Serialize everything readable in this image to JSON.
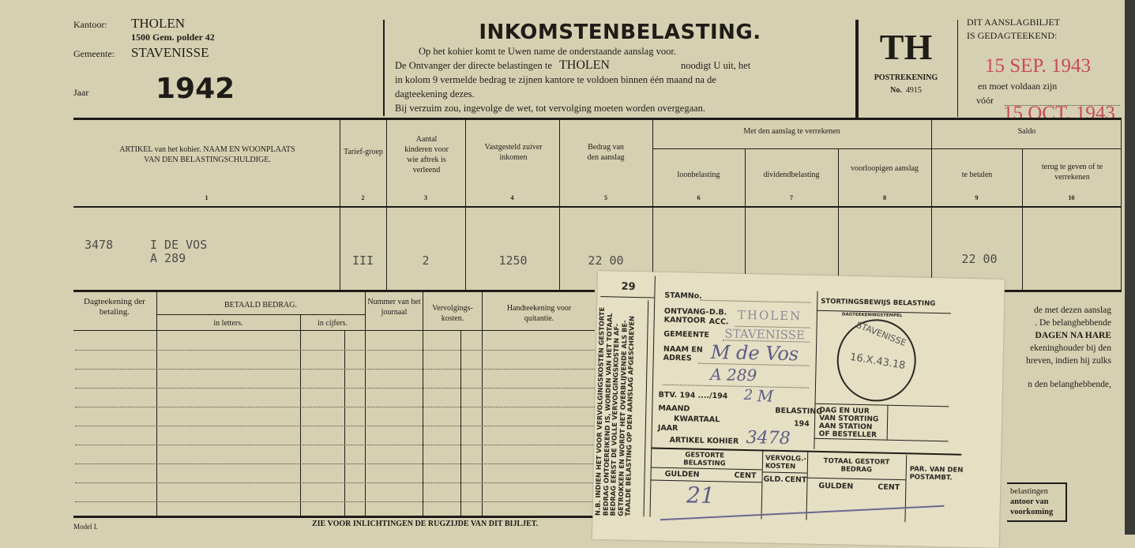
{
  "header": {
    "kantoor_label": "Kantoor:",
    "kantoor": "THOLEN",
    "address": "1500 Gem. polder 42",
    "gemeente_label": "Gemeente:",
    "gemeente": "STAVENISSE",
    "jaar_label": "Jaar",
    "jaar": "1942",
    "title": "INKOMSTENBELASTING.",
    "intro_lines": [
      "Op het kohier komt te Uwen name de onderstaande aanslag voor.",
      "De Ontvanger der directe belastingen te",
      "noodigt U uit, het",
      "in kolom 9 vermelde bedrag te zijnen kantore te voldoen binnen één maand na de",
      "dagteekening dezes.",
      "Bij verzuim zou, ingevolge de wet, tot vervolging moeten worden overgegaan."
    ],
    "ontvanger_place": "THOLEN",
    "code": "TH",
    "postrekening_label": "POSTREKENING",
    "postrekening_no_label": "No.",
    "postrekening_no": "4915",
    "dated_label_1": "DIT AANSLAGBILJET",
    "dated_label_2": "IS GEDAGTEEKEND:",
    "dated": "15 SEP. 1943",
    "pay_label": "en moet voldaan zijn",
    "before_label": "vóór",
    "due": "15 OCT. 1943"
  },
  "table": {
    "columns": [
      {
        "label": "ARTIKEL van het kohier. NAAM EN WOONPLAATS VAN DEN BELASTINGSCHULDIGE.",
        "num": "1"
      },
      {
        "label": "Tarief-groep",
        "num": "2"
      },
      {
        "label": "Aantal kinderen voor wie aftrek is verleend",
        "num": "3"
      },
      {
        "label": "Vastgesteld zuiver inkomen",
        "num": "4"
      },
      {
        "label": "Bedrag van den aanslag",
        "num": "5"
      },
      {
        "label": "loonbelasting",
        "num": "6"
      },
      {
        "label": "dividendbelasting",
        "num": "7"
      },
      {
        "label": "voorloopigen aanslag",
        "num": "8"
      },
      {
        "label": "te betalen",
        "num": "9"
      },
      {
        "label": "terug te geven of te verrekenen",
        "num": "10"
      }
    ],
    "group_verrekenen": "Met den aanslag te verrekenen",
    "group_saldo": "Saldo",
    "row": {
      "artikel": "3478",
      "name": "I DE VOS",
      "address": "A 289",
      "tariefgroep": "III",
      "kinderen": "2",
      "inkomen": "1250",
      "bedrag": "22 00",
      "te_betalen": "22 00"
    }
  },
  "payments": {
    "columns": [
      "Dagteekening der betaling.",
      "BETAALD BEDRAG.",
      "in letters.",
      "in cijfers.",
      "Nummer van het journaal",
      "Vervolgings-kosten.",
      "Handteekening voor quitantie."
    ],
    "footer_model": "Model I.",
    "footer_note": "ZIE VOOR INLICHTINGEN DE RUGZIJDE VAN DIT BIJLJET."
  },
  "right_text": [
    "de met dezen aanslag",
    ". De belanghebbende",
    "DAGEN NA HARE",
    "ekeninghouder bij den",
    "hreven, indien hij zulks",
    "n den belanghebbende,"
  ],
  "right_box": [
    "belastingen",
    "antoor van",
    "voorkoming"
  ],
  "stub": {
    "number": "29",
    "side_note": "N.B. INDIEN HET VOOR VERVOLGINGSKOSTEN GESTORTE BEDRAG ONTOEREIKEND IS, WORDEN VAN HET TOTAAL BEDRAG EERST DE VOLLE VERVOLGINGSKOSTEN AF-GETROKKEN EN WORDT HET OVERBLIJVENDE ALS BE-TAALDE BELASTING OP DEN AANSLAG AFGESCHREVEN",
    "stamno": "STAMNo.",
    "ontvang": "ONTVANG-",
    "kantoor": "KANTOOR",
    "db": "D.B.",
    "acc": "ACC.",
    "gemeente": "GEMEENTE",
    "naam": "NAAM EN",
    "adres": "ADRES",
    "btv": "BTV. 194 ..../194",
    "maand": "MAAND",
    "belasting": "BELASTING",
    "kwartaal": "KWARTAAL",
    "jaar": "JAAR",
    "jaar194": "194",
    "artikel": "ARTIKEL KOHIER",
    "stamp_kantoor": "THOLEN",
    "stamp_gemeente": "STAVENISSE",
    "hw_name": "M de Vos",
    "hw_addr": "A 289",
    "hw_btv": "2",
    "hw_belasting": "M",
    "hw_artikel": "3478",
    "hw_gulden": "21",
    "stortingsbewijs": "STORTINGSBEWIJS BELASTING",
    "dagtekening": "DAGTEEKENINGSTEMPEL",
    "postmark_place": "STAVENISSE",
    "postmark_date": "16.X.43.18",
    "dag_uur": [
      "DAG EN UUR",
      "VAN STORTING",
      "AAN STATION",
      "OF BESTELLER"
    ],
    "gestorte": "GESTORTE BELASTING",
    "vervolg": "VERVOLG.-KOSTEN",
    "totaal": "TOTAAL GESTORT BEDRAG",
    "par": "PAR. VAN DEN POSTAMBT.",
    "gulden": "GULDEN",
    "cent": "CENT",
    "gld": "GLD."
  }
}
